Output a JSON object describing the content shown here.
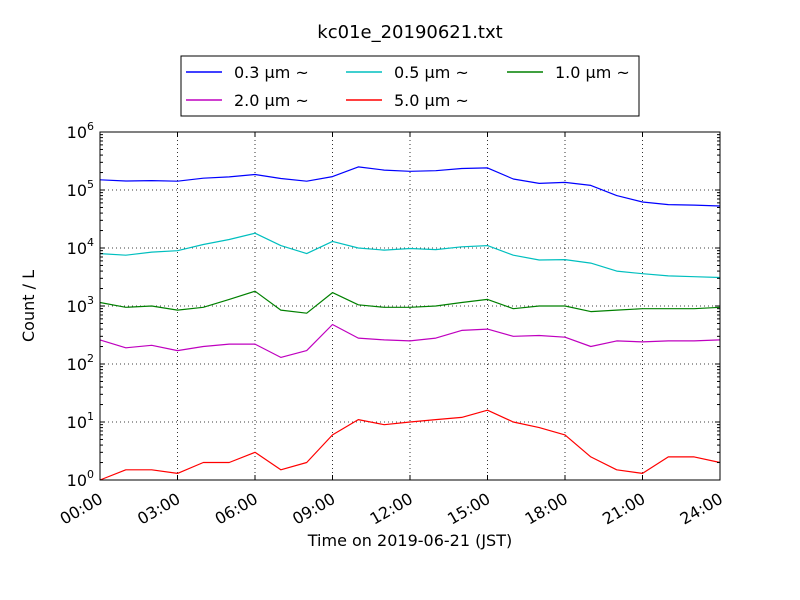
{
  "chart_data": {
    "type": "line",
    "title": "kc01e_20190621.txt",
    "xlabel": "Time on 2019-06-21 (JST)",
    "ylabel": "Count / L",
    "yscale": "log",
    "ylim": [
      1,
      1000000
    ],
    "xlim": [
      "00:00",
      "24:00"
    ],
    "x_ticks": [
      "00:00",
      "03:00",
      "06:00",
      "09:00",
      "12:00",
      "15:00",
      "18:00",
      "21:00",
      "24:00"
    ],
    "y_ticks": [
      "10^0",
      "10^1",
      "10^2",
      "10^3",
      "10^4",
      "10^5",
      "10^6"
    ],
    "grid": true,
    "legend_position": "top-center",
    "x_hours": [
      0,
      1,
      2,
      3,
      4,
      5,
      6,
      7,
      8,
      9,
      10,
      11,
      12,
      13,
      14,
      15,
      16,
      17,
      18,
      19,
      20,
      21,
      22,
      23,
      24
    ],
    "series": [
      {
        "name": "0.3 μm ~",
        "color": "#0000ff",
        "values": [
          150000,
          143000,
          145000,
          142000,
          160000,
          168000,
          185000,
          158000,
          142000,
          170000,
          250000,
          220000,
          210000,
          215000,
          235000,
          240000,
          155000,
          130000,
          135000,
          120000,
          80000,
          62000,
          56000,
          55000,
          53000
        ]
      },
      {
        "name": "0.5 μm ~",
        "color": "#00bfbf",
        "values": [
          8000,
          7500,
          8500,
          9000,
          11500,
          14000,
          18000,
          11000,
          8000,
          13000,
          10000,
          9200,
          9800,
          9400,
          10500,
          11000,
          7500,
          6200,
          6300,
          5500,
          4000,
          3600,
          3300,
          3200,
          3100
        ]
      },
      {
        "name": "1.0 μm ~",
        "color": "#008000",
        "values": [
          1150,
          950,
          1000,
          850,
          950,
          1300,
          1800,
          850,
          750,
          1700,
          1050,
          950,
          950,
          1000,
          1150,
          1300,
          900,
          1000,
          1000,
          800,
          850,
          900,
          900,
          900,
          950
        ]
      },
      {
        "name": "2.0 μm ~",
        "color": "#bf00bf",
        "values": [
          260,
          190,
          210,
          170,
          200,
          220,
          220,
          130,
          170,
          480,
          280,
          260,
          250,
          280,
          380,
          400,
          300,
          310,
          290,
          200,
          250,
          240,
          250,
          250,
          260
        ]
      },
      {
        "name": "5.0 μm ~",
        "color": "#ff0000",
        "values": [
          1,
          1.5,
          1.5,
          1.3,
          2,
          2,
          3,
          1.5,
          2,
          6,
          11,
          9,
          10,
          11,
          12,
          16,
          10,
          8,
          6,
          2.5,
          1.5,
          1.3,
          2.5,
          2.5,
          2
        ]
      }
    ]
  }
}
